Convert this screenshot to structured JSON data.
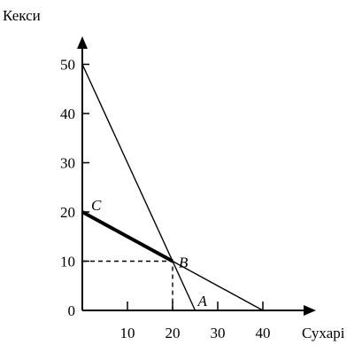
{
  "chart_data": {
    "type": "line",
    "xlabel": "Сухарі",
    "ylabel": "Кекси",
    "xlim": [
      0,
      50
    ],
    "ylim": [
      0,
      55
    ],
    "x_ticks": [
      10,
      20,
      30,
      40
    ],
    "y_ticks": [
      0,
      10,
      20,
      30,
      40,
      50
    ],
    "grid": false,
    "series": [
      {
        "points": [
          [
            0,
            50
          ],
          [
            25,
            0
          ]
        ],
        "style": "thin"
      },
      {
        "points": [
          [
            0,
            20
          ],
          [
            20,
            10
          ],
          [
            40,
            0
          ]
        ],
        "style": "thin"
      },
      {
        "points": [
          [
            0,
            20
          ],
          [
            20,
            10
          ]
        ],
        "style": "thick"
      },
      {
        "points": [
          [
            0,
            10
          ],
          [
            20,
            10
          ],
          [
            20,
            0
          ]
        ],
        "style": "dashed"
      }
    ],
    "annotations": [
      {
        "text": "C",
        "x": 0,
        "y": 20
      },
      {
        "text": "B",
        "x": 20,
        "y": 10
      },
      {
        "text": "A",
        "x": 25,
        "y": 0
      }
    ]
  }
}
